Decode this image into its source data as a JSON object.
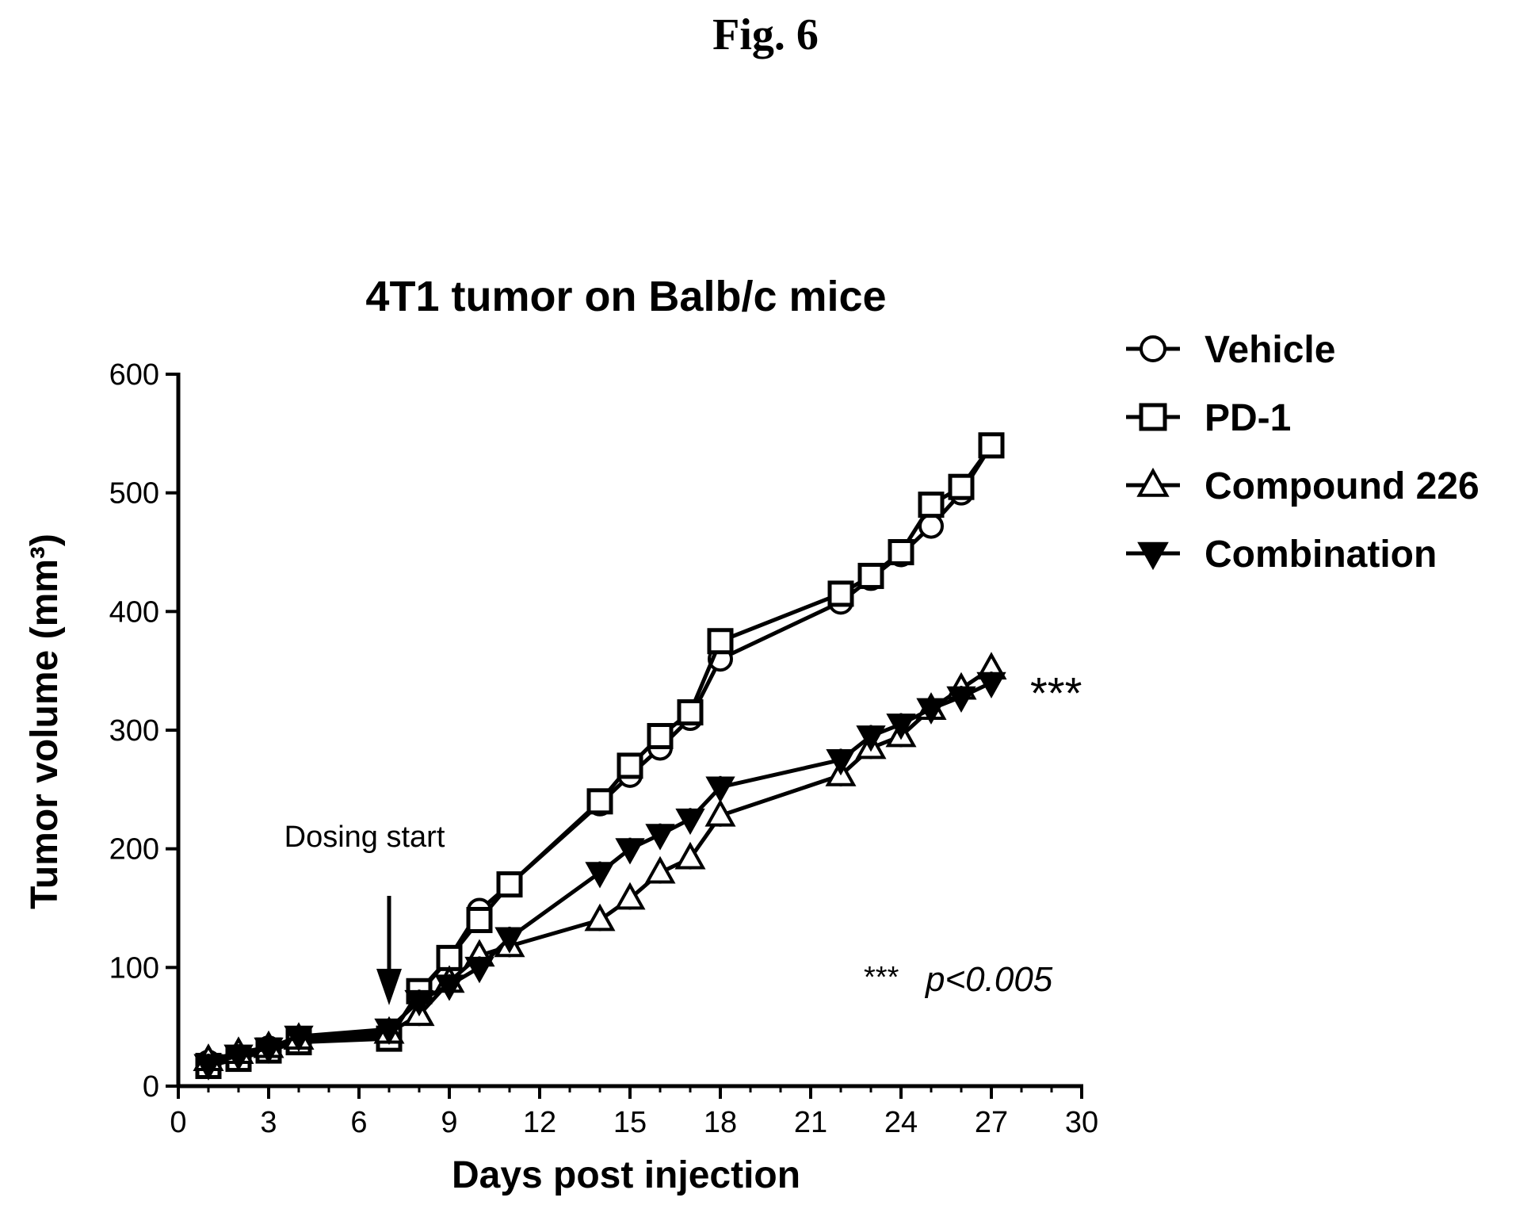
{
  "figure_label": "Fig. 6",
  "chart_data": {
    "type": "line",
    "title": "4T1 tumor on Balb/c mice",
    "xlabel": "Days post injection",
    "ylabel": "Tumor volume (mm³)",
    "xlim": [
      0,
      30
    ],
    "ylim": [
      0,
      600
    ],
    "xticks": [
      0,
      3,
      6,
      9,
      12,
      15,
      18,
      21,
      24,
      27,
      30
    ],
    "yticks": [
      0,
      100,
      200,
      300,
      400,
      500,
      600
    ],
    "grid": false,
    "legend_position": "top-right, outside plot",
    "series": [
      {
        "name": "Vehicle",
        "marker": "circle",
        "x": [
          1,
          2,
          3,
          4,
          7,
          8,
          9,
          10,
          11,
          14,
          15,
          16,
          17,
          18,
          22,
          23,
          24,
          25,
          26,
          27
        ],
        "y": [
          20,
          25,
          32,
          38,
          42,
          78,
          108,
          148,
          170,
          238,
          262,
          285,
          310,
          360,
          408,
          428,
          448,
          472,
          500,
          540
        ]
      },
      {
        "name": "PD-1",
        "marker": "square",
        "x": [
          1,
          2,
          3,
          4,
          7,
          8,
          9,
          10,
          11,
          14,
          15,
          16,
          17,
          18,
          22,
          23,
          24,
          25,
          26,
          27
        ],
        "y": [
          17,
          23,
          30,
          37,
          40,
          80,
          108,
          140,
          170,
          240,
          270,
          295,
          315,
          375,
          415,
          430,
          450,
          490,
          505,
          540
        ]
      },
      {
        "name": "Compound 226",
        "marker": "triangle-up",
        "x": [
          1,
          2,
          3,
          4,
          7,
          8,
          9,
          10,
          11,
          14,
          15,
          16,
          17,
          18,
          22,
          23,
          24,
          25,
          26,
          27
        ],
        "y": [
          22,
          28,
          33,
          40,
          45,
          60,
          88,
          110,
          118,
          140,
          158,
          180,
          192,
          228,
          262,
          285,
          295,
          318,
          335,
          352
        ]
      },
      {
        "name": "Combination",
        "marker": "triangle-down",
        "x": [
          1,
          2,
          3,
          4,
          7,
          8,
          9,
          10,
          11,
          14,
          15,
          16,
          17,
          18,
          22,
          23,
          24,
          25,
          26,
          27
        ],
        "y": [
          18,
          26,
          32,
          42,
          48,
          72,
          85,
          100,
          125,
          180,
          200,
          212,
          225,
          252,
          275,
          295,
          305,
          318,
          328,
          340
        ]
      }
    ],
    "annotations": {
      "dosing_label": "Dosing start",
      "dosing_day": 7,
      "significance_marker": "***",
      "significance_value": 345,
      "significance_note_stars": "***",
      "significance_note_p": "p<0.005"
    }
  }
}
